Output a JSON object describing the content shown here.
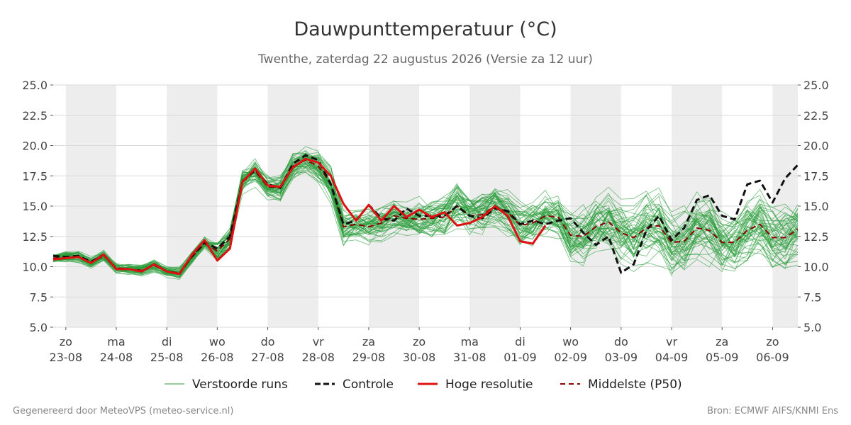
{
  "chart_data": {
    "type": "line",
    "title": "Dauwpunttemperatuur (°C)",
    "subtitle": "Twenthe, zaterdag 22 augustus 2026 (Versie za 12 uur)",
    "ylim": [
      5.0,
      25.0
    ],
    "y_ticks": [
      "5.0",
      "7.5",
      "10.0",
      "12.5",
      "15.0",
      "17.5",
      "20.0",
      "22.5",
      "25.0"
    ],
    "y_axis_both_sides": true,
    "grid": true,
    "x_range_days": [
      -0.25,
      14.5
    ],
    "x_ticks": [
      {
        "day": "zo",
        "date": "23-08"
      },
      {
        "day": "ma",
        "date": "24-08"
      },
      {
        "day": "di",
        "date": "25-08"
      },
      {
        "day": "wo",
        "date": "26-08"
      },
      {
        "day": "do",
        "date": "27-08"
      },
      {
        "day": "vr",
        "date": "28-08"
      },
      {
        "day": "za",
        "date": "29-08"
      },
      {
        "day": "zo",
        "date": "30-08"
      },
      {
        "day": "ma",
        "date": "31-08"
      },
      {
        "day": "di",
        "date": "01-09"
      },
      {
        "day": "wo",
        "date": "02-09"
      },
      {
        "day": "do",
        "date": "03-09"
      },
      {
        "day": "vr",
        "date": "04-09"
      },
      {
        "day": "za",
        "date": "05-09"
      },
      {
        "day": "zo",
        "date": "06-09"
      }
    ],
    "shaded_bands": [
      [
        0,
        1
      ],
      [
        2,
        3
      ],
      [
        4,
        5
      ],
      [
        6,
        7
      ],
      [
        8,
        9
      ],
      [
        10,
        11
      ],
      [
        12,
        13
      ],
      [
        14,
        14.5
      ]
    ],
    "series": [
      {
        "name": "Controle",
        "color": "#111111",
        "style": "dashed",
        "x": [
          -0.25,
          0,
          0.25,
          0.5,
          0.75,
          1,
          1.25,
          1.5,
          1.75,
          2,
          2.25,
          2.5,
          2.75,
          3,
          3.25,
          3.5,
          3.75,
          4,
          4.25,
          4.5,
          4.75,
          5,
          5.25,
          5.5,
          5.75,
          6,
          6.25,
          6.5,
          6.75,
          7,
          7.25,
          7.5,
          7.75,
          8,
          8.25,
          8.5,
          8.75,
          9,
          9.25,
          9.5,
          9.75,
          10,
          10.25,
          10.5,
          10.75,
          11,
          11.25,
          11.5,
          11.75,
          12,
          12.25,
          12.5,
          12.75,
          13,
          13.25,
          13.5,
          13.75,
          14,
          14.25,
          14.5
        ],
        "values": [
          10.9,
          10.8,
          10.9,
          10.4,
          11.0,
          9.8,
          9.8,
          9.6,
          10.2,
          9.6,
          9.4,
          10.9,
          12.0,
          11.5,
          12.5,
          17.0,
          18.0,
          16.8,
          16.5,
          18.5,
          19.2,
          18.8,
          16.8,
          13.5,
          13.8,
          15.1,
          14.0,
          13.8,
          14.8,
          14.2,
          14.2,
          14.2,
          15.0,
          14.2,
          14.0,
          14.8,
          14.6,
          13.5,
          13.8,
          13.5,
          13.8,
          14.0,
          12.8,
          11.8,
          12.5,
          9.5,
          10.2,
          13.0,
          14.2,
          12.2,
          13.2,
          15.5,
          15.9,
          14.2,
          13.9,
          16.8,
          17.1,
          15.3,
          17.3,
          18.4
        ]
      },
      {
        "name": "Hoge resolutie",
        "color": "#dd1111",
        "style": "solid",
        "x": [
          -0.25,
          0,
          0.25,
          0.5,
          0.75,
          1,
          1.25,
          1.5,
          1.75,
          2,
          2.25,
          2.5,
          2.75,
          3,
          3.25,
          3.5,
          3.75,
          4,
          4.25,
          4.5,
          4.75,
          5,
          5.25,
          5.5,
          5.75,
          6,
          6.25,
          6.5,
          6.75,
          7,
          7.25,
          7.5,
          7.75,
          8,
          8.25,
          8.5,
          8.75,
          9,
          9.25,
          9.5
        ],
        "values": [
          10.6,
          10.7,
          10.8,
          10.3,
          11.0,
          9.8,
          9.8,
          9.6,
          10.2,
          9.6,
          9.4,
          11.0,
          12.2,
          10.5,
          11.5,
          17.0,
          18.1,
          16.7,
          16.6,
          18.2,
          18.9,
          18.6,
          17.5,
          15.2,
          13.8,
          15.1,
          13.8,
          15.0,
          14.1,
          14.7,
          14.1,
          14.5,
          13.4,
          13.6,
          14.1,
          15.0,
          14.2,
          12.1,
          11.9,
          13.4
        ]
      },
      {
        "name": "Middelste (P50)",
        "color": "#8b0000",
        "style": "dashed",
        "x": [
          -0.25,
          0,
          0.25,
          0.5,
          0.75,
          1,
          1.25,
          1.5,
          1.75,
          2,
          2.25,
          2.5,
          2.75,
          3,
          3.25,
          3.5,
          3.75,
          4,
          4.25,
          4.5,
          4.75,
          5,
          5.25,
          5.5,
          5.75,
          6,
          6.25,
          6.5,
          6.75,
          7,
          7.25,
          7.5,
          7.75,
          8,
          8.25,
          8.5,
          8.75,
          9,
          9.25,
          9.5,
          9.75,
          10,
          10.25,
          10.5,
          10.75,
          11,
          11.25,
          11.5,
          11.75,
          12,
          12.25,
          12.5,
          12.75,
          13,
          13.25,
          13.5,
          13.75,
          14,
          14.25,
          14.5
        ],
        "values": [
          10.7,
          10.8,
          10.8,
          10.3,
          10.9,
          9.9,
          9.8,
          9.7,
          10.1,
          9.6,
          9.5,
          10.8,
          11.9,
          11.3,
          12.3,
          17.1,
          17.9,
          16.6,
          16.5,
          18.3,
          18.8,
          18.3,
          16.9,
          13.3,
          13.5,
          13.3,
          13.6,
          14.2,
          14.0,
          13.9,
          14.0,
          14.1,
          15.0,
          14.2,
          14.3,
          15.0,
          14.5,
          13.4,
          13.6,
          14.2,
          14.1,
          12.6,
          12.5,
          13.3,
          13.7,
          12.8,
          12.4,
          13.2,
          13.4,
          12.0,
          12.1,
          13.2,
          13.0,
          12.0,
          12.0,
          13.0,
          13.5,
          12.4,
          12.4,
          13.1
        ]
      }
    ],
    "ensemble": {
      "name": "Verstoorde runs",
      "color": "#2a9d3a",
      "count": 50
    },
    "legend": [
      {
        "label": "Verstoorde runs",
        "color": "#2a9d3a",
        "style": "thin"
      },
      {
        "label": "Controle",
        "color": "#111111",
        "style": "dashed"
      },
      {
        "label": "Hoge resolutie",
        "color": "#dd1111",
        "style": "solid"
      },
      {
        "label": "Middelste (P50)",
        "color": "#8b0000",
        "style": "dashed"
      }
    ],
    "legend_position": "bottom"
  },
  "footer": {
    "left": "Gegenereerd door MeteoVPS (meteo-service.nl)",
    "right": "Bron: ECMWF AIFS/KNMI Ens"
  }
}
